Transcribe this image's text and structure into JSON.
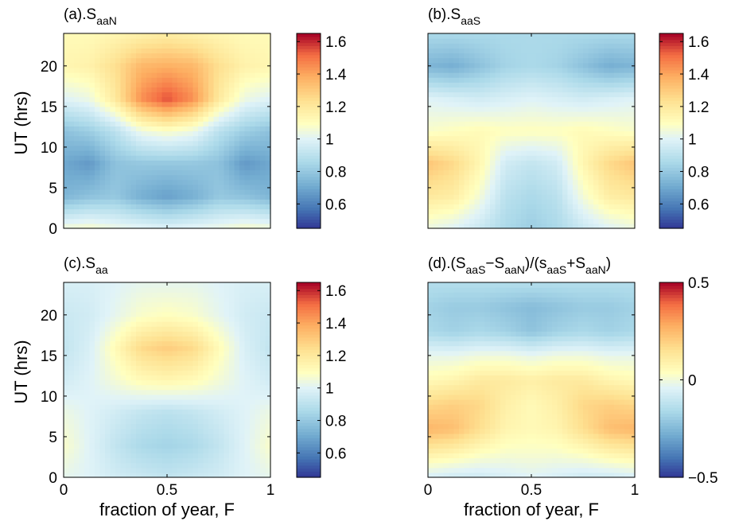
{
  "chart_data": [
    {
      "type": "heatmap",
      "panel": "a",
      "title_main": "(a).S",
      "title_sub": "aaN",
      "xlabel": "",
      "ylabel": "UT (hrs)",
      "xlim": [
        0,
        1
      ],
      "ylim": [
        0,
        24
      ],
      "yticks": [
        "0",
        "5",
        "10",
        "15",
        "20"
      ],
      "xticks": [],
      "colorbar": {
        "range": [
          0.45,
          1.65
        ],
        "ticks": [
          "0.6",
          "0.8",
          "1",
          "1.2",
          "1.4",
          "1.6"
        ]
      },
      "x": [
        0,
        0.125,
        0.25,
        0.375,
        0.5,
        0.625,
        0.75,
        0.875,
        1
      ],
      "y": [
        0,
        4,
        8,
        12,
        16,
        20,
        24
      ],
      "z": [
        [
          1.06,
          1.08,
          1.04,
          1.02,
          1.0,
          1.02,
          1.04,
          1.08,
          1.06
        ],
        [
          0.74,
          0.78,
          0.8,
          0.72,
          0.68,
          0.72,
          0.8,
          0.78,
          0.74
        ],
        [
          0.7,
          0.66,
          0.78,
          0.8,
          0.8,
          0.8,
          0.78,
          0.66,
          0.7
        ],
        [
          0.78,
          0.82,
          0.9,
          1.04,
          1.08,
          1.04,
          0.9,
          0.82,
          0.78
        ],
        [
          1.0,
          1.04,
          1.2,
          1.45,
          1.56,
          1.45,
          1.2,
          1.04,
          1.0
        ],
        [
          1.14,
          1.16,
          1.24,
          1.36,
          1.38,
          1.36,
          1.24,
          1.16,
          1.14
        ],
        [
          1.12,
          1.12,
          1.14,
          1.16,
          1.18,
          1.16,
          1.14,
          1.12,
          1.12
        ]
      ]
    },
    {
      "type": "heatmap",
      "panel": "b",
      "title_main": "(b).S",
      "title_sub": "aaS",
      "xlabel": "",
      "ylabel": "",
      "xlim": [
        0,
        1
      ],
      "ylim": [
        0,
        24
      ],
      "yticks": [],
      "xticks": [],
      "colorbar": {
        "range": [
          0.45,
          1.65
        ],
        "ticks": [
          "0.6",
          "0.8",
          "1",
          "1.2",
          "1.4",
          "1.6"
        ]
      },
      "x": [
        0,
        0.125,
        0.25,
        0.375,
        0.5,
        0.625,
        0.75,
        0.875,
        1
      ],
      "y": [
        0,
        4,
        8,
        12,
        16,
        20,
        24
      ],
      "z": [
        [
          1.04,
          1.0,
          0.94,
          0.86,
          0.82,
          0.86,
          0.94,
          1.0,
          1.04
        ],
        [
          1.2,
          1.18,
          1.06,
          0.9,
          0.86,
          0.9,
          1.06,
          1.18,
          1.2
        ],
        [
          1.32,
          1.26,
          1.14,
          0.96,
          0.92,
          0.96,
          1.14,
          1.26,
          1.32
        ],
        [
          1.08,
          1.1,
          1.12,
          1.1,
          1.1,
          1.1,
          1.12,
          1.1,
          1.08
        ],
        [
          1.0,
          0.98,
          0.96,
          0.98,
          1.0,
          0.98,
          0.96,
          0.98,
          1.0
        ],
        [
          0.74,
          0.72,
          0.78,
          0.84,
          0.86,
          0.84,
          0.78,
          0.72,
          0.74
        ],
        [
          0.86,
          0.86,
          0.86,
          0.86,
          0.86,
          0.86,
          0.86,
          0.86,
          0.86
        ]
      ]
    },
    {
      "type": "heatmap",
      "panel": "c",
      "title_main": "(c).S",
      "title_sub": "aa",
      "xlabel": "fraction of year, F",
      "ylabel": "UT (hrs)",
      "xlim": [
        0,
        1
      ],
      "ylim": [
        0,
        24
      ],
      "yticks": [
        "0",
        "5",
        "10",
        "15",
        "20"
      ],
      "xticks": [
        "0",
        "0.5",
        "1"
      ],
      "colorbar": {
        "range": [
          0.45,
          1.65
        ],
        "ticks": [
          "0.6",
          "0.8",
          "1",
          "1.2",
          "1.4",
          "1.6"
        ]
      },
      "x": [
        0,
        0.125,
        0.25,
        0.375,
        0.5,
        0.625,
        0.75,
        0.875,
        1
      ],
      "y": [
        0,
        4,
        8,
        12,
        16,
        20,
        24
      ],
      "z": [
        [
          1.02,
          1.0,
          0.96,
          0.94,
          0.92,
          0.94,
          0.96,
          1.0,
          1.02
        ],
        [
          1.08,
          1.0,
          0.92,
          0.86,
          0.84,
          0.86,
          0.92,
          1.0,
          1.08
        ],
        [
          1.04,
          1.0,
          0.96,
          0.92,
          0.9,
          0.92,
          0.96,
          1.0,
          1.04
        ],
        [
          0.96,
          1.0,
          1.06,
          1.12,
          1.14,
          1.12,
          1.06,
          1.0,
          0.96
        ],
        [
          0.92,
          0.98,
          1.12,
          1.26,
          1.3,
          1.26,
          1.12,
          0.98,
          0.92
        ],
        [
          0.94,
          0.96,
          1.02,
          1.08,
          1.1,
          1.08,
          1.02,
          0.96,
          0.94
        ],
        [
          0.98,
          0.98,
          1.0,
          1.02,
          1.02,
          1.02,
          1.0,
          0.98,
          0.98
        ]
      ]
    },
    {
      "type": "heatmap",
      "panel": "d",
      "title_main": "(d).(S",
      "title_parts": [
        {
          "t": "(d).(S",
          "sub": false
        },
        {
          "t": "aaS",
          "sub": true
        },
        {
          "t": "−S",
          "sub": false
        },
        {
          "t": "aaN",
          "sub": true
        },
        {
          "t": ")/(s",
          "sub": false
        },
        {
          "t": "aaS",
          "sub": true
        },
        {
          "t": "+S",
          "sub": false
        },
        {
          "t": "aaN",
          "sub": true
        },
        {
          "t": ")",
          "sub": false
        }
      ],
      "xlabel": "fraction of year, F",
      "ylabel": "",
      "xlim": [
        0,
        1
      ],
      "ylim": [
        0,
        24
      ],
      "yticks": [],
      "xticks": [
        "0",
        "0.5",
        "1"
      ],
      "colorbar": {
        "range": [
          -0.5,
          0.5
        ],
        "ticks": [
          "−0.5",
          "0",
          "0.5"
        ]
      },
      "x": [
        0,
        0.125,
        0.25,
        0.375,
        0.5,
        0.625,
        0.75,
        0.875,
        1
      ],
      "y": [
        0,
        3,
        6,
        9,
        12,
        15,
        18,
        21,
        24
      ],
      "z": [
        [
          -0.06,
          -0.08,
          -0.08,
          -0.06,
          -0.04,
          -0.06,
          -0.08,
          -0.08,
          -0.06
        ],
        [
          0.1,
          0.08,
          0.04,
          0.02,
          0.02,
          0.02,
          0.04,
          0.08,
          0.1
        ],
        [
          0.26,
          0.24,
          0.16,
          0.08,
          0.06,
          0.08,
          0.16,
          0.24,
          0.26
        ],
        [
          0.18,
          0.2,
          0.18,
          0.1,
          0.06,
          0.1,
          0.18,
          0.2,
          0.18
        ],
        [
          0.06,
          0.08,
          0.12,
          0.12,
          0.1,
          0.12,
          0.12,
          0.08,
          0.06
        ],
        [
          -0.02,
          -0.02,
          0.0,
          0.0,
          -0.02,
          0.0,
          0.0,
          -0.02,
          -0.02
        ],
        [
          -0.16,
          -0.18,
          -0.16,
          -0.18,
          -0.22,
          -0.18,
          -0.16,
          -0.18,
          -0.16
        ],
        [
          -0.18,
          -0.2,
          -0.2,
          -0.22,
          -0.24,
          -0.22,
          -0.2,
          -0.2,
          -0.18
        ],
        [
          -0.14,
          -0.14,
          -0.14,
          -0.14,
          -0.14,
          -0.14,
          -0.14,
          -0.14,
          -0.14
        ]
      ]
    }
  ]
}
